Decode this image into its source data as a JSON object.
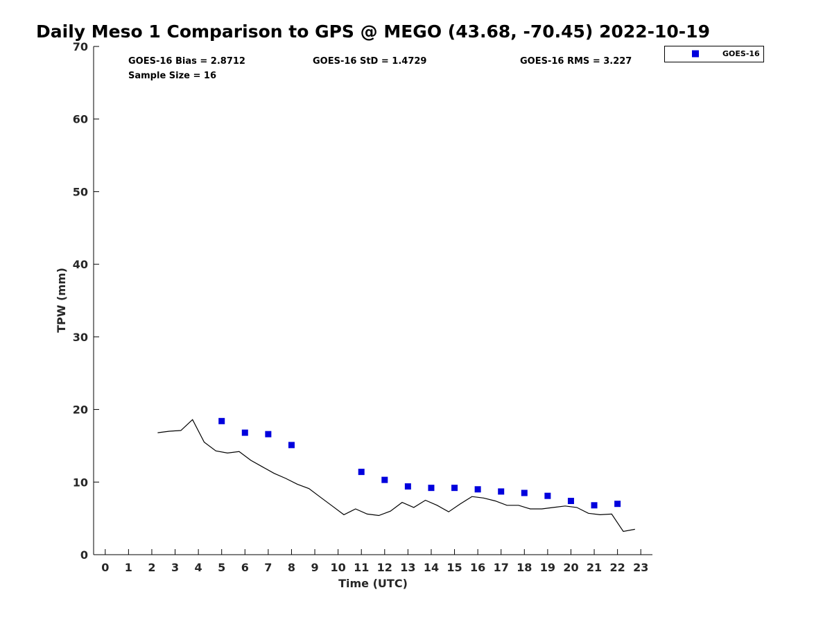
{
  "chart_data": {
    "type": "scatter",
    "title": "Daily Meso 1 Comparison to GPS @ MEGO (43.68, -70.45) 2022-10-19",
    "xlabel": "Time (UTC)",
    "ylabel": "TPW (mm)",
    "xlim": [
      -0.5,
      23.5
    ],
    "ylim": [
      0,
      70
    ],
    "xticks": [
      0,
      1,
      2,
      3,
      4,
      5,
      6,
      7,
      8,
      9,
      10,
      11,
      12,
      13,
      14,
      15,
      16,
      17,
      18,
      19,
      20,
      21,
      22,
      23
    ],
    "yticks": [
      0,
      10,
      20,
      30,
      40,
      50,
      60,
      70
    ],
    "grid": false,
    "legend_position": "top-right",
    "stats": {
      "bias": "GOES-16 Bias = 2.8712",
      "std": "GOES-16 StD = 1.4729",
      "rms": "GOES-16 RMS = 3.227",
      "sample": "Sample Size = 16"
    },
    "series": [
      {
        "name": "GOES-16",
        "kind": "scatter",
        "color": "#0000dd",
        "x": [
          5,
          6,
          7,
          8,
          11,
          12,
          13,
          14,
          15,
          16,
          17,
          18,
          19,
          20,
          21,
          22
        ],
        "y": [
          18.4,
          16.8,
          16.6,
          15.1,
          11.4,
          10.3,
          9.4,
          9.2,
          9.2,
          9.0,
          8.7,
          8.5,
          8.1,
          7.4,
          6.8,
          7.0
        ]
      },
      {
        "kind": "line",
        "color": "#000000",
        "x": [
          2.25,
          2.75,
          3.25,
          3.75,
          4.25,
          4.75,
          5.25,
          5.75,
          6.25,
          6.75,
          7.25,
          7.75,
          8.25,
          8.75,
          9.25,
          9.75,
          10.25,
          10.75,
          11.25,
          11.75,
          12.25,
          12.75,
          13.25,
          13.75,
          14.25,
          14.75,
          15.25,
          15.75,
          16.25,
          16.75,
          17.25,
          17.75,
          18.25,
          18.75,
          19.25,
          19.75,
          20.25,
          20.75,
          21.25,
          21.75,
          22.25,
          22.75
        ],
        "y": [
          16.8,
          17.0,
          17.1,
          18.6,
          15.5,
          14.3,
          14.0,
          14.2,
          13.0,
          12.1,
          11.2,
          10.5,
          9.7,
          9.1,
          7.9,
          6.7,
          5.5,
          6.3,
          5.6,
          5.4,
          6.0,
          7.2,
          6.5,
          7.5,
          6.8,
          5.9,
          7.0,
          8.0,
          7.8,
          7.4,
          6.8,
          6.8,
          6.3,
          6.3,
          6.5,
          6.7,
          6.5,
          5.7,
          5.5,
          5.6,
          3.2,
          3.5
        ]
      }
    ]
  }
}
